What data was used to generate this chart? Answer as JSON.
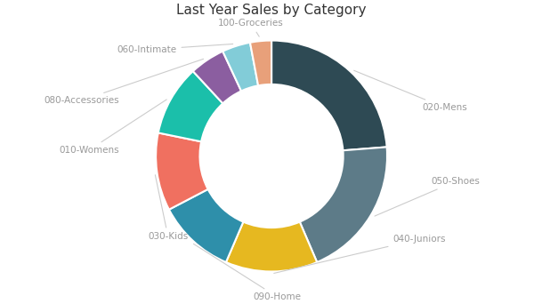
{
  "title": "Last Year Sales by Category",
  "title_fontsize": 11,
  "categories": [
    "020-Mens",
    "050-Shoes",
    "040-Juniors",
    "090-Home",
    "030-Kids",
    "010-Womens",
    "080-Accessories",
    "060-Intimate",
    "100-Groceries"
  ],
  "values": [
    24,
    20,
    13,
    11,
    11,
    10,
    5,
    4,
    3
  ],
  "colors": [
    "#2e4a54",
    "#5d7b88",
    "#e6b820",
    "#2e8faa",
    "#f07060",
    "#1bbfaa",
    "#8b5ea0",
    "#82ccd8",
    "#e8a07a"
  ],
  "label_color": "#999999",
  "label_fontsize": 7.5,
  "background_color": "#ffffff"
}
